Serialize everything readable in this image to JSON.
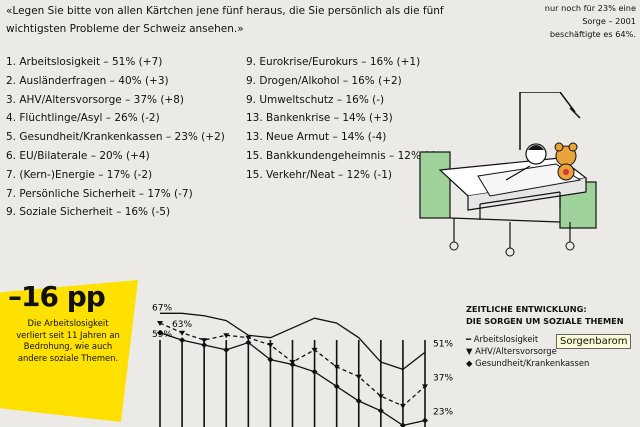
{
  "intro": "«Legen Sie bitte von allen Kärtchen jene fünf heraus, die Sie persönlich als die fünf wichtigsten Probleme der Schweiz ansehen.»",
  "list_left": [
    "1. Arbeitslosigkeit – 51% (+7)",
    "2. Ausländerfragen – 40% (+3)",
    "3. AHV/Altersvorsorge – 37% (+8)",
    "4. Flüchtlinge/Asyl – 26% (-2)",
    "5. Gesundheit/Krankenkassen – 23% (+2)",
    "6. EU/Bilaterale – 20% (+4)",
    "7. (Kern-)Energie – 17% (-2)",
    "7. Persönliche Sicherheit – 17% (-7)",
    "9. Soziale Sicherheit – 16% (-5)"
  ],
  "list_right": [
    "9. Eurokrise/Eurokurs – 16% (+1)",
    "9. Drogen/Alkohol – 16% (+2)",
    "9. Umweltschutz – 16% (-)",
    "13. Bankenkrise – 14% (+3)",
    "13. Neue Armut – 14% (-4)",
    "15. Bankkundengeheimnis – 12% (-)",
    "15. Verkehr/Neat – 12% (-1)"
  ],
  "bubble_text": "nur noch für 23% eine Sorge – 2001 beschäftigte es 64%.",
  "badge": {
    "big": "–16 pp",
    "text": "Die Arbeitslosigkeit verliert seit 11 Jahren an Bedrohung, wie auch andere soziale Themen."
  },
  "legend": {
    "title_1": "ZEITLICHE ENTWICKLUNG:",
    "title_2": "DIE SORGEN UM SOZIALE THEMEN",
    "items": [
      "Arbeitslosigkeit",
      "AHV/Altersvorsorge",
      "Gesundheit/Krankenkassen"
    ]
  },
  "tooltip": "Sorgenbarom",
  "chart_data": {
    "type": "line",
    "series": [
      {
        "name": "Arbeitslosigkeit",
        "values": [
          67,
          67,
          66,
          64,
          58,
          57,
          61,
          65,
          63,
          57,
          47,
          44,
          51
        ],
        "start_label": "67%",
        "end_label": "51%",
        "color": "#111111",
        "marker": "none",
        "dash": "none"
      },
      {
        "name": "AHV/Altersvorsorge",
        "values": [
          63,
          59,
          56,
          58,
          57,
          54,
          47,
          52,
          45,
          41,
          33,
          29,
          37
        ],
        "start_label": "63%",
        "end_label": "37%",
        "color": "#111111",
        "marker": "triangle",
        "dash": "4,3"
      },
      {
        "name": "Gesundheit/Krankenkassen",
        "values": [
          59,
          56,
          54,
          52,
          55,
          48,
          46,
          43,
          37,
          31,
          27,
          21,
          23
        ],
        "start_label": "59%",
        "end_label": "23%",
        "color": "#111111",
        "marker": "diamond",
        "dash": "none"
      }
    ],
    "points": 13
  }
}
